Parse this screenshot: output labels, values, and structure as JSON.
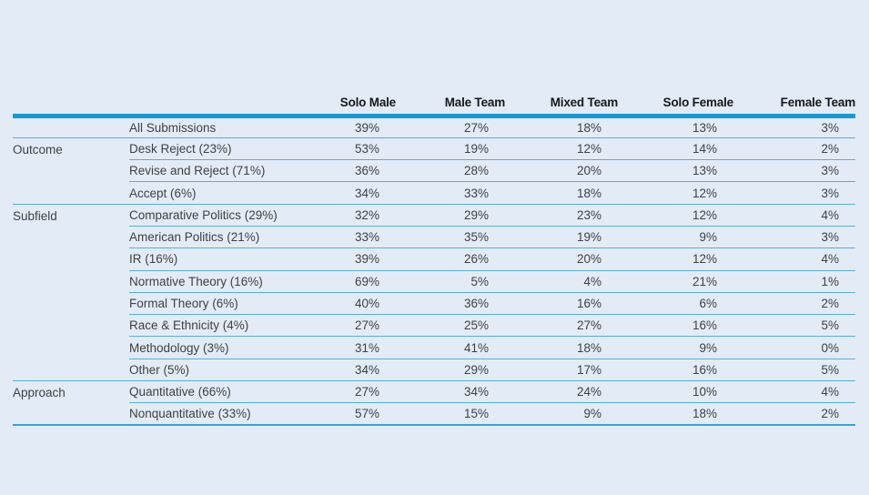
{
  "page": {
    "background": "#e3ecf6"
  },
  "colors": {
    "background": "#e3ecf6",
    "header_rule": "#1899d4",
    "row_rule": "#56aede",
    "bottom_rule": "#35a3da",
    "header_text": "#16181b",
    "body_text": "#3f4145"
  },
  "chart_data": {
    "type": "table",
    "title": "",
    "unit": "percent",
    "legend_position": "none",
    "column_headers": [
      "Solo Male",
      "Male Team",
      "Mixed Team",
      "Solo Female",
      "Female Team"
    ],
    "group_labels": [
      "",
      "Outcome",
      "Subfield",
      "Approach"
    ],
    "groups": [
      {
        "label": "",
        "rows": [
          {
            "label": "All Submissions",
            "values": [
              "39%",
              "27%",
              "18%",
              "13%",
              "3%"
            ]
          }
        ]
      },
      {
        "label": "Outcome",
        "rows": [
          {
            "label": "Desk Reject (23%)",
            "values": [
              "53%",
              "19%",
              "12%",
              "14%",
              "2%"
            ]
          },
          {
            "label": "Revise and Reject (71%)",
            "values": [
              "36%",
              "28%",
              "20%",
              "13%",
              "3%"
            ]
          },
          {
            "label": "Accept (6%)",
            "values": [
              "34%",
              "33%",
              "18%",
              "12%",
              "3%"
            ]
          }
        ]
      },
      {
        "label": "Subfield",
        "rows": [
          {
            "label": "Comparative Politics (29%)",
            "values": [
              "32%",
              "29%",
              "23%",
              "12%",
              "4%"
            ]
          },
          {
            "label": "American Politics (21%)",
            "values": [
              "33%",
              "35%",
              "19%",
              "9%",
              "3%"
            ]
          },
          {
            "label": "IR (16%)",
            "values": [
              "39%",
              "26%",
              "20%",
              "12%",
              "4%"
            ]
          },
          {
            "label": "Normative Theory (16%)",
            "values": [
              "69%",
              "5%",
              "4%",
              "21%",
              "1%"
            ]
          },
          {
            "label": "Formal Theory (6%)",
            "values": [
              "40%",
              "36%",
              "16%",
              "6%",
              "2%"
            ]
          },
          {
            "label": "Race & Ethnicity (4%)",
            "values": [
              "27%",
              "25%",
              "27%",
              "16%",
              "5%"
            ]
          },
          {
            "label": "Methodology (3%)",
            "values": [
              "31%",
              "41%",
              "18%",
              "9%",
              "0%"
            ]
          },
          {
            "label": "Other (5%)",
            "values": [
              "34%",
              "29%",
              "17%",
              "16%",
              "5%"
            ]
          }
        ]
      },
      {
        "label": "Approach",
        "rows": [
          {
            "label": "Quantitative (66%)",
            "values": [
              "27%",
              "34%",
              "24%",
              "10%",
              "4%"
            ]
          },
          {
            "label": "Nonquantitative (33%)",
            "values": [
              "57%",
              "15%",
              "9%",
              "18%",
              "2%"
            ]
          }
        ]
      }
    ]
  }
}
